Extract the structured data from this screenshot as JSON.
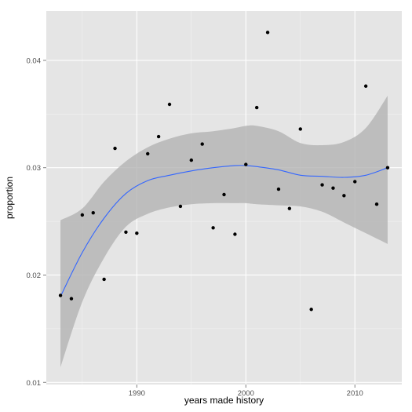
{
  "chart_data": {
    "type": "scatter",
    "title": "",
    "xlabel": "years made history",
    "ylabel": "proportion",
    "xlim": [
      1981.7,
      2014.3
    ],
    "ylim": [
      0.0098,
      0.0446
    ],
    "x_ticks": [
      1990,
      2000,
      2010
    ],
    "y_ticks": [
      0.01,
      0.02,
      0.03,
      0.04
    ],
    "x_tick_labels": [
      "1990",
      "2000",
      "2010"
    ],
    "y_tick_labels": [
      "0.01",
      "0.02",
      "0.03",
      "0.04"
    ],
    "grid": true,
    "legend": "none",
    "colors": {
      "panel": "#e5e5e5",
      "grid_major": "#ffffff",
      "grid_minor": "#f2f2f2",
      "points": "#000000",
      "smooth_line": "#3366ff",
      "ribbon": "#b3b3b3"
    },
    "points": [
      {
        "x": 1983,
        "y": 0.0181
      },
      {
        "x": 1984,
        "y": 0.0178
      },
      {
        "x": 1985,
        "y": 0.0256
      },
      {
        "x": 1986,
        "y": 0.0258
      },
      {
        "x": 1987,
        "y": 0.0196
      },
      {
        "x": 1988,
        "y": 0.0318
      },
      {
        "x": 1989,
        "y": 0.024
      },
      {
        "x": 1990,
        "y": 0.0239
      },
      {
        "x": 1991,
        "y": 0.0313
      },
      {
        "x": 1992,
        "y": 0.0329
      },
      {
        "x": 1993,
        "y": 0.0359
      },
      {
        "x": 1994,
        "y": 0.0264
      },
      {
        "x": 1995,
        "y": 0.0307
      },
      {
        "x": 1996,
        "y": 0.0322
      },
      {
        "x": 1997,
        "y": 0.0244
      },
      {
        "x": 1998,
        "y": 0.0275
      },
      {
        "x": 1999,
        "y": 0.0238
      },
      {
        "x": 2000,
        "y": 0.0303
      },
      {
        "x": 2001,
        "y": 0.0356
      },
      {
        "x": 2002,
        "y": 0.0426
      },
      {
        "x": 2003,
        "y": 0.028
      },
      {
        "x": 2004,
        "y": 0.0262
      },
      {
        "x": 2005,
        "y": 0.0336
      },
      {
        "x": 2006,
        "y": 0.0168
      },
      {
        "x": 2007,
        "y": 0.0284
      },
      {
        "x": 2008,
        "y": 0.0281
      },
      {
        "x": 2009,
        "y": 0.0274
      },
      {
        "x": 2010,
        "y": 0.0287
      },
      {
        "x": 2011,
        "y": 0.0376
      },
      {
        "x": 2012,
        "y": 0.0266
      },
      {
        "x": 2013,
        "y": 0.03
      }
    ],
    "smooth": {
      "x": [
        1983,
        1985,
        1987,
        1989,
        1991,
        1993,
        1995,
        1997,
        1999,
        2000,
        2001,
        2003,
        2005,
        2007,
        2009,
        2011,
        2013
      ],
      "y": [
        0.018,
        0.0221,
        0.0253,
        0.0276,
        0.0288,
        0.0293,
        0.0297,
        0.03,
        0.0302,
        0.0302,
        0.0301,
        0.0298,
        0.0293,
        0.0292,
        0.0291,
        0.0293,
        0.03
      ],
      "lower": [
        0.0114,
        0.0175,
        0.0216,
        0.0245,
        0.0257,
        0.0263,
        0.0266,
        0.0267,
        0.0267,
        0.0267,
        0.0266,
        0.0265,
        0.0264,
        0.0259,
        0.0249,
        0.0239,
        0.0229
      ],
      "upper": [
        0.0251,
        0.0262,
        0.0287,
        0.0306,
        0.0319,
        0.0327,
        0.0332,
        0.0334,
        0.0337,
        0.0339,
        0.0339,
        0.0334,
        0.0323,
        0.0321,
        0.0324,
        0.0337,
        0.0367
      ]
    }
  }
}
